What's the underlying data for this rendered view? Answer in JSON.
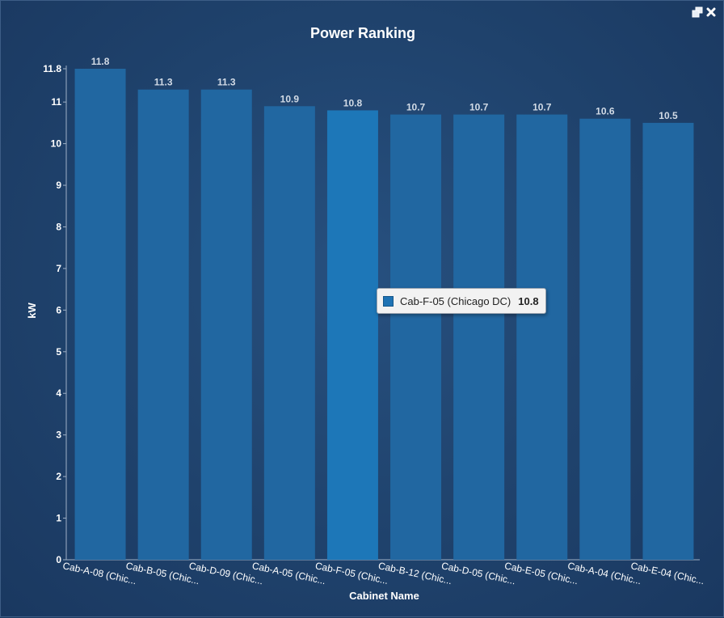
{
  "window_controls": {
    "restore_icon": "restore-window-icon",
    "close_icon": "close-icon"
  },
  "colors": {
    "bar": "#2167a1",
    "bar_highlight": "#1d77b8",
    "axis": "#9fb0c6",
    "text": "#ffffff",
    "value_label": "#d2dbe6"
  },
  "tooltip": {
    "label": "Cab-F-05 (Chicago DC)",
    "value": "10.8"
  },
  "chart_data": {
    "type": "bar",
    "title": "Power Ranking",
    "xlabel": "Cabinet Name",
    "ylabel": "kW",
    "categories": [
      "Cab-A-08 (Chic...",
      "Cab-B-05 (Chic...",
      "Cab-D-09 (Chic...",
      "Cab-A-05 (Chic...",
      "Cab-F-05 (Chic...",
      "Cab-B-12 (Chic...",
      "Cab-D-05 (Chic...",
      "Cab-E-05 (Chic...",
      "Cab-A-04 (Chic...",
      "Cab-E-04 (Chic..."
    ],
    "values": [
      11.8,
      11.3,
      11.3,
      10.9,
      10.8,
      10.7,
      10.7,
      10.7,
      10.6,
      10.5
    ],
    "value_labels": [
      "11.8",
      "11.3",
      "11.3",
      "10.9",
      "10.8",
      "10.7",
      "10.7",
      "10.7",
      "10.6",
      "10.5"
    ],
    "yticks": [
      "0",
      "1",
      "2",
      "3",
      "4",
      "5",
      "6",
      "7",
      "8",
      "9",
      "10",
      "11",
      "11.8"
    ],
    "ylim": [
      0,
      11.8
    ],
    "highlighted_index": 4,
    "grid": false,
    "legend": "none"
  }
}
